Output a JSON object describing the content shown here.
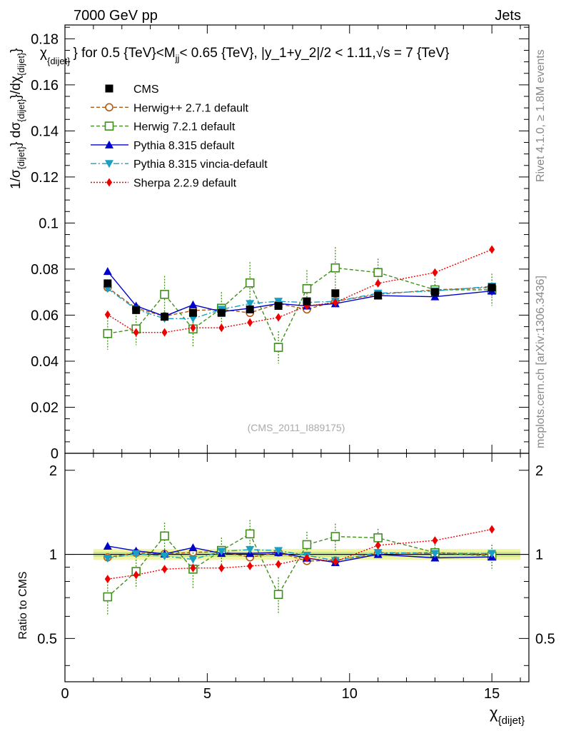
{
  "header": {
    "left": "7000 GeV pp",
    "right": "Jets"
  },
  "side_labels": {
    "rivet": "Rivet 4.1.0, ≥ 1.8M events",
    "mcplots": "mcplots.cern.ch [arXiv:1306.3436]"
  },
  "chart_data": {
    "type": "scatter",
    "title": "χ_{dijet} for 0.5 {TeV}<M_jj< 0.65 {TeV}, |y_1+y_2|/2 < 1.11,√s = 7 {TeV}",
    "title_parts": {
      "chi": "χ",
      "chi_sub": "{dijet}",
      "mid": "} for 0.5 {TeV}<M",
      "m_sub": "jj",
      "rest": "< 0.65 {TeV}, |y_1+y_2|/2 < 1.11,",
      "sqrt": "√",
      "tail": "s = 7 {TeV}"
    },
    "watermark": "(CMS_2011_I889175)",
    "xlabel": "χ_{dijet}",
    "xlabel_main": "χ",
    "xlabel_sub": "{dijet}",
    "ylabel": "1/σ_{dijet} dσ_{dijet}/dχ_{dijet}",
    "ylabel_parts": {
      "p1": "1/σ",
      "s1": "{dijet}",
      "p2": "} dσ",
      "s2": "{dijet}",
      "p3": "}/dχ",
      "s3": "{dijet}",
      "p4": "}"
    },
    "ratio_ylabel": "Ratio to CMS",
    "xlim": [
      0,
      16.3
    ],
    "ylim": [
      0,
      0.186
    ],
    "ratio_ylim": [
      0.35,
      2.3
    ],
    "x_ticks": [
      "0",
      "5",
      "10",
      "15"
    ],
    "x_tick_values": [
      0,
      5,
      10,
      15
    ],
    "y_ticks": [
      "0",
      "0.02",
      "0.04",
      "0.06",
      "0.08",
      "0.1",
      "0.12",
      "0.14",
      "0.16",
      "0.18"
    ],
    "y_tick_values": [
      0,
      0.02,
      0.04,
      0.06,
      0.08,
      0.1,
      0.12,
      0.14,
      0.16,
      0.18
    ],
    "ratio_ticks": [
      "0.5",
      "1",
      "2"
    ],
    "ratio_tick_values": [
      0.5,
      1,
      2
    ],
    "x": [
      1.5,
      2.5,
      3.5,
      4.5,
      5.5,
      6.5,
      7.5,
      8.5,
      9.5,
      11,
      13,
      15
    ],
    "data": {
      "name": "CMS",
      "color": "#000000",
      "values": [
        0.0738,
        0.0622,
        0.0593,
        0.061,
        0.061,
        0.0625,
        0.064,
        0.066,
        0.0695,
        0.0685,
        0.07,
        0.072
      ],
      "band": 0.045
    },
    "series": [
      {
        "name": "Herwig++ 2.7.1 default",
        "color": "#b05a10",
        "marker": "circle-open",
        "dash": "5,3",
        "values": [
          0.072,
          0.063,
          0.0595,
          0.062,
          0.0625,
          0.061,
          0.065,
          0.0625,
          0.066,
          0.069,
          0.071,
          0.072
        ],
        "errors": [
          0.001,
          0.001,
          0.001,
          0.001,
          0.001,
          0.001,
          0.001,
          0.001,
          0.001,
          0.001,
          0.001,
          0.001
        ]
      },
      {
        "name": "Herwig 7.2.1 default",
        "color": "#3f8f1a",
        "marker": "square-open",
        "dash": "5,3",
        "values": [
          0.052,
          0.054,
          0.069,
          0.054,
          0.063,
          0.074,
          0.046,
          0.0715,
          0.0805,
          0.0785,
          0.071,
          0.071
        ],
        "errors": [
          0.007,
          0.007,
          0.008,
          0.008,
          0.007,
          0.009,
          0.007,
          0.008,
          0.009,
          0.006,
          0.005,
          0.007
        ]
      },
      {
        "name": "Pythia 8.315 default",
        "color": "#0000cc",
        "marker": "triangle-up",
        "dash": "",
        "values": [
          0.079,
          0.064,
          0.0595,
          0.0645,
          0.0615,
          0.063,
          0.065,
          0.064,
          0.065,
          0.0685,
          0.068,
          0.0705
        ],
        "errors": [
          0.0015,
          0.0015,
          0.0015,
          0.0015,
          0.0015,
          0.0015,
          0.0015,
          0.0015,
          0.0015,
          0.0015,
          0.0015,
          0.002
        ]
      },
      {
        "name": "Pythia 8.315 vincia-default",
        "color": "#1a9fc4",
        "marker": "triangle-down",
        "dash": "8,3,2,3",
        "values": [
          0.0715,
          0.0625,
          0.0585,
          0.0585,
          0.0625,
          0.065,
          0.066,
          0.0655,
          0.066,
          0.0695,
          0.0705,
          0.0725
        ],
        "errors": [
          0.0012,
          0.0012,
          0.0012,
          0.0012,
          0.0012,
          0.0012,
          0.0012,
          0.0012,
          0.0012,
          0.0012,
          0.0012,
          0.0015
        ]
      },
      {
        "name": "Sherpa 2.2.9 default",
        "color": "#ee0000",
        "marker": "diamond",
        "dash": "2,2",
        "values": [
          0.0602,
          0.0525,
          0.0525,
          0.0545,
          0.0545,
          0.0568,
          0.059,
          0.064,
          0.0655,
          0.0738,
          0.0785,
          0.0885
        ],
        "errors": [
          0.0015,
          0.0015,
          0.0015,
          0.0015,
          0.0015,
          0.0015,
          0.0015,
          0.0015,
          0.0015,
          0.0015,
          0.0015,
          0.0015
        ]
      }
    ],
    "legend_position": "top-left"
  }
}
